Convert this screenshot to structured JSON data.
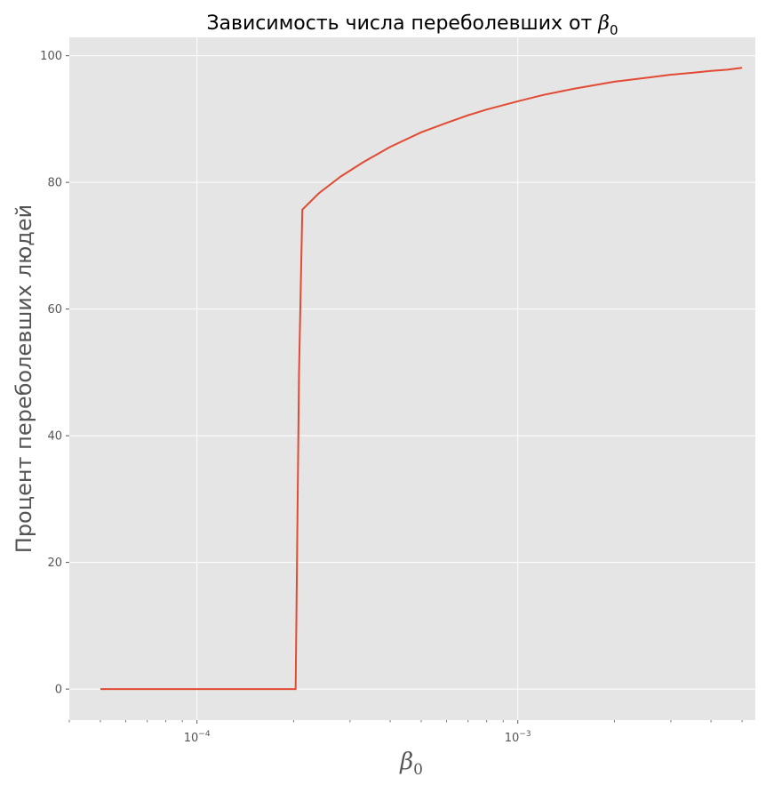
{
  "chart_data": {
    "type": "line",
    "title_text": "Зависимость числа переболевших от ",
    "title_symbol": "β",
    "title_subscript": "0",
    "xlabel_symbol": "β",
    "xlabel_subscript": "0",
    "ylabel": "Процент переболевших людей",
    "xscale": "log",
    "xlim": [
      4e-05,
      0.0055
    ],
    "ylim": [
      -4.9,
      102.9
    ],
    "grid": true,
    "background": "#e5e5e5",
    "line_color": "#e24a33",
    "yticks": [
      0,
      20,
      40,
      60,
      80,
      100
    ],
    "xticks_major": [
      {
        "value": 0.0001,
        "base": "10",
        "exp": "−4"
      },
      {
        "value": 0.001,
        "base": "10",
        "exp": "−3"
      }
    ],
    "series": [
      {
        "x": [
          5e-05,
          6e-05,
          8e-05,
          0.0001,
          0.00012,
          0.00015,
          0.00018,
          0.000203,
          0.000208,
          0.000213,
          0.00024,
          0.00028,
          0.00033,
          0.0004,
          0.0005,
          0.0006,
          0.0007,
          0.0008,
          0.001,
          0.0012,
          0.0015,
          0.0018,
          0.002,
          0.0025,
          0.003,
          0.0035,
          0.004,
          0.0045,
          0.005
        ],
        "y": [
          0,
          0,
          0,
          0,
          0,
          0,
          0,
          0,
          50.0,
          75.7,
          78.3,
          80.9,
          83.2,
          85.6,
          87.9,
          89.4,
          90.6,
          91.5,
          92.8,
          93.8,
          94.8,
          95.5,
          95.9,
          96.5,
          97.0,
          97.3,
          97.6,
          97.8,
          98.1
        ]
      }
    ]
  }
}
